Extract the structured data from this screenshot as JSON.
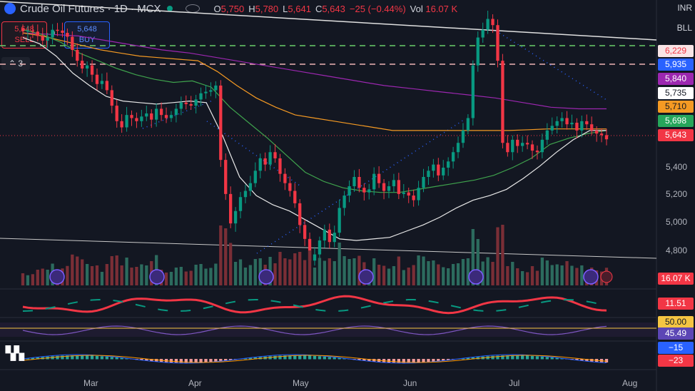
{
  "header": {
    "title": "Crude Oil Futures · 1D · MCX",
    "o_key": "O",
    "o_val": "5,750",
    "h_key": "H",
    "h_val": "5,780",
    "l_key": "L",
    "l_val": "5,641",
    "c_key": "C",
    "c_val": "5,643",
    "change": "−25 (−0.44%)",
    "vol_key": "Vol",
    "vol_val": "16.07 K"
  },
  "trade": {
    "sell_price": "5,648",
    "sell_label": "SELL",
    "spread": "0",
    "buy_price": "5,648",
    "buy_label": "BUY"
  },
  "indicators_toggle": "3",
  "right_corner": {
    "currency": "INR",
    "unit": "BLL"
  },
  "colors": {
    "up": "#089981",
    "down": "#f23645",
    "bg": "#131722"
  },
  "price_tags": [
    {
      "text": "6,229",
      "bg": "#f8e4e6",
      "fg": "#f23645"
    },
    {
      "text": "5,935",
      "bg": "#2962ff",
      "fg": "#ffffff"
    },
    {
      "text": "5,840",
      "bg": "#9c27b0",
      "fg": "#ffffff"
    },
    {
      "text": "5,735",
      "bg": "#ffffff",
      "fg": "#131722"
    },
    {
      "text": "5,710",
      "bg": "#f59a23",
      "fg": "#131722"
    },
    {
      "text": "5,698",
      "bg": "#26a65b",
      "fg": "#ffffff"
    },
    {
      "text": "5,643",
      "bg": "#f23645",
      "fg": "#ffffff"
    }
  ],
  "price_axis": [
    "5,400",
    "5,200",
    "5,000",
    "4,800"
  ],
  "pane_tags": {
    "volume": "16.07 K",
    "osc": "11.51",
    "rsi_level": "50.00",
    "rsi": "45.49",
    "macd1": "−15",
    "macd2": "−23"
  },
  "months": [
    "Mar",
    "Apr",
    "May",
    "Jun",
    "Jul",
    "Aug"
  ],
  "chart_data": {
    "type": "candlestick",
    "title": "Crude Oil Futures · 1D · MCX",
    "ylim": [
      4700,
      6450
    ],
    "closes": [
      6340,
      6345,
      6338,
      6310,
      6280,
      6300,
      6350,
      6345,
      6330,
      6305,
      6220,
      6150,
      6100,
      6120,
      6060,
      6000,
      6020,
      5960,
      5860,
      5760,
      5720,
      5800,
      5780,
      5760,
      5790,
      5810,
      5770,
      5840,
      5800,
      5780,
      5800,
      5840,
      5880,
      5870,
      5860,
      5900,
      5940,
      5950,
      5960,
      5990,
      5510,
      5290,
      5100,
      5180,
      5270,
      5310,
      5360,
      5440,
      5520,
      5480,
      5560,
      5520,
      5420,
      5360,
      5310,
      5230,
      5090,
      5000,
      4860,
      4900,
      4990,
      5060,
      4980,
      5040,
      5200,
      5280,
      5340,
      5400,
      5330,
      5300,
      5320,
      5420,
      5360,
      5310,
      5340,
      5380,
      5290,
      5300,
      5280,
      5250,
      5330,
      5400,
      5440,
      5480,
      5410,
      5460,
      5500,
      5560,
      5620,
      5700,
      5780,
      6120,
      6300,
      6350,
      6420,
      6380,
      6150,
      5620,
      5560,
      5640,
      5600,
      5620,
      5610,
      5570,
      5560,
      5640,
      5700,
      5730,
      5760,
      5780,
      5740,
      5750,
      5700,
      5760,
      5740,
      5700,
      5680,
      5670,
      5643
    ],
    "sma_white_values": [
      6300,
      6260,
      6180,
      6070,
      5990,
      5920,
      5890,
      5880,
      5870,
      5880,
      5890,
      5880,
      5660,
      5400,
      5280,
      5220,
      5180,
      5120,
      5060,
      5000,
      4990,
      5000,
      5010,
      5050,
      5090,
      5140,
      5200,
      5250,
      5280,
      5320,
      5390,
      5470,
      5560,
      5640,
      5700,
      5700
    ],
    "sma_green_values": [
      6350,
      6320,
      6270,
      6200,
      6150,
      6100,
      6060,
      6030,
      6010,
      6020,
      5980,
      5850,
      5750,
      5650,
      5540,
      5430,
      5370,
      5330,
      5310,
      5300,
      5300,
      5320,
      5340,
      5360,
      5380,
      5410,
      5460,
      5520,
      5610,
      5650,
      5680,
      5700
    ],
    "sma_orange_values": [
      6330,
      6310,
      6280,
      6250,
      6220,
      6200,
      6180,
      6170,
      6160,
      6150,
      6080,
      5990,
      5910,
      5850,
      5800,
      5780,
      5760,
      5740,
      5720,
      5700,
      5700,
      5700,
      5700,
      5700,
      5700,
      5700,
      5705,
      5710,
      5710,
      5710,
      5710
    ],
    "sma_purple_values": [
      6330,
      6320,
      6310,
      6280,
      6250,
      6220,
      6200,
      6170,
      6140,
      6110,
      6080,
      6050,
      6020,
      5990,
      5970,
      5950,
      5930,
      5910,
      5880,
      5850,
      5840,
      5840
    ]
  }
}
